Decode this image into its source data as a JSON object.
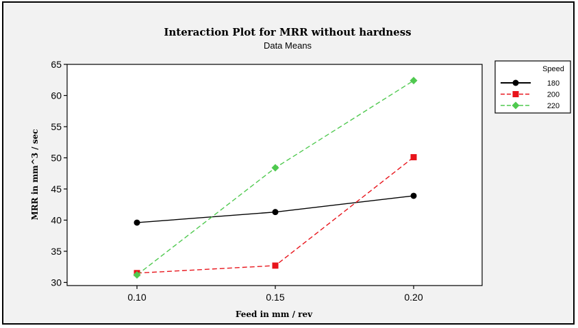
{
  "chart_data": {
    "type": "line",
    "title": "Interaction Plot for MRR without hardness",
    "subtitle": "Data Means",
    "xlabel": "Feed in mm / rev",
    "ylabel": "MRR in mm^3 / sec",
    "categories": [
      "0.10",
      "0.15",
      "0.20"
    ],
    "y_ticks": [
      30,
      35,
      40,
      45,
      50,
      55,
      60,
      65
    ],
    "ylim": [
      29.5,
      65
    ],
    "grid": false,
    "legend": {
      "title": "Speed",
      "position": "right"
    },
    "series": [
      {
        "name": "180",
        "values": [
          39.6,
          41.3,
          43.9
        ],
        "color": "#000000",
        "marker": "circle",
        "dash": "solid"
      },
      {
        "name": "200",
        "values": [
          31.5,
          32.7,
          50.1
        ],
        "color": "#e8141b",
        "marker": "square",
        "dash": "dashed"
      },
      {
        "name": "220",
        "values": [
          31.2,
          48.4,
          62.4
        ],
        "color": "#4fc94f",
        "marker": "diamond",
        "dash": "dashed"
      }
    ]
  }
}
